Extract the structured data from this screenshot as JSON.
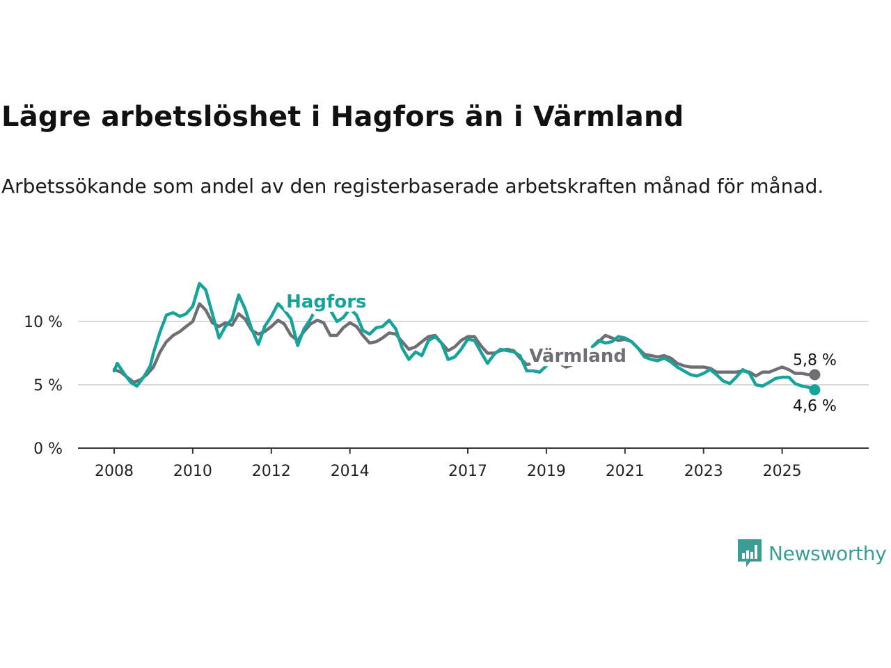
{
  "title": "Lägre arbetslöshet i Hagfors än i Värmland",
  "subtitle": "Arbetssökande som andel av den registerbaserade arbetskraften månad för månad.",
  "brand": {
    "name": "Newsworthy",
    "icon": "newsworthy-logo-icon",
    "color": "#3a9d94"
  },
  "chart_data": {
    "type": "line",
    "title": "Lägre arbetslöshet i Hagfors än i Värmland",
    "xlabel": "",
    "ylabel": "",
    "ylim": [
      0,
      13
    ],
    "xlim": [
      2008,
      2026.3
    ],
    "grid": true,
    "yticks": [
      {
        "value": 0,
        "label": "0 %"
      },
      {
        "value": 5,
        "label": "5 %"
      },
      {
        "value": 10,
        "label": "10 %"
      }
    ],
    "xticks": [
      {
        "value": 2008,
        "label": "2008"
      },
      {
        "value": 2010,
        "label": "2010"
      },
      {
        "value": 2012,
        "label": "2012"
      },
      {
        "value": 2014,
        "label": "2014"
      },
      {
        "value": 2017,
        "label": "2017"
      },
      {
        "value": 2019,
        "label": "2019"
      },
      {
        "value": 2021,
        "label": "2021"
      },
      {
        "value": 2023,
        "label": "2023"
      },
      {
        "value": 2025,
        "label": "2025"
      }
    ],
    "series": [
      {
        "name": "Värmland",
        "color": "#6f6f73",
        "end_label": "5,8 %",
        "label_position": "2019.8,6.8",
        "points": [
          [
            2008.0,
            6.2
          ],
          [
            2008.17,
            6.0
          ],
          [
            2008.33,
            5.6
          ],
          [
            2008.5,
            5.2
          ],
          [
            2008.67,
            5.4
          ],
          [
            2008.83,
            5.8
          ],
          [
            2009.0,
            6.4
          ],
          [
            2009.17,
            7.6
          ],
          [
            2009.33,
            8.4
          ],
          [
            2009.5,
            8.9
          ],
          [
            2009.67,
            9.2
          ],
          [
            2009.83,
            9.6
          ],
          [
            2010.0,
            10.0
          ],
          [
            2010.17,
            11.4
          ],
          [
            2010.33,
            10.9
          ],
          [
            2010.5,
            9.9
          ],
          [
            2010.67,
            9.6
          ],
          [
            2010.83,
            9.9
          ],
          [
            2011.0,
            9.7
          ],
          [
            2011.17,
            10.6
          ],
          [
            2011.33,
            10.2
          ],
          [
            2011.5,
            9.3
          ],
          [
            2011.67,
            9.0
          ],
          [
            2011.83,
            9.2
          ],
          [
            2012.0,
            9.6
          ],
          [
            2012.17,
            10.1
          ],
          [
            2012.33,
            9.8
          ],
          [
            2012.5,
            8.9
          ],
          [
            2012.67,
            8.5
          ],
          [
            2012.83,
            9.2
          ],
          [
            2013.0,
            9.8
          ],
          [
            2013.17,
            10.1
          ],
          [
            2013.33,
            9.9
          ],
          [
            2013.5,
            8.9
          ],
          [
            2013.67,
            8.9
          ],
          [
            2013.83,
            9.5
          ],
          [
            2014.0,
            9.9
          ],
          [
            2014.17,
            9.6
          ],
          [
            2014.33,
            8.9
          ],
          [
            2014.5,
            8.3
          ],
          [
            2014.67,
            8.4
          ],
          [
            2014.83,
            8.7
          ],
          [
            2015.0,
            9.1
          ],
          [
            2015.17,
            9.0
          ],
          [
            2015.33,
            8.4
          ],
          [
            2015.5,
            7.8
          ],
          [
            2015.67,
            8.0
          ],
          [
            2015.83,
            8.4
          ],
          [
            2016.0,
            8.8
          ],
          [
            2016.17,
            8.9
          ],
          [
            2016.33,
            8.3
          ],
          [
            2016.5,
            7.7
          ],
          [
            2016.67,
            8.0
          ],
          [
            2016.83,
            8.5
          ],
          [
            2017.0,
            8.8
          ],
          [
            2017.17,
            8.8
          ],
          [
            2017.33,
            8.1
          ],
          [
            2017.5,
            7.5
          ],
          [
            2017.67,
            7.5
          ],
          [
            2017.83,
            7.7
          ],
          [
            2018.0,
            7.8
          ],
          [
            2018.17,
            7.7
          ],
          [
            2018.33,
            7.1
          ],
          [
            2018.5,
            6.6
          ],
          [
            2018.67,
            6.7
          ],
          [
            2018.83,
            6.7
          ],
          [
            2019.0,
            6.8
          ],
          [
            2019.17,
            6.9
          ],
          [
            2019.33,
            6.7
          ],
          [
            2019.5,
            6.4
          ],
          [
            2019.67,
            6.6
          ],
          [
            2019.83,
            6.9
          ],
          [
            2020.0,
            7.4
          ],
          [
            2020.17,
            8.0
          ],
          [
            2020.33,
            8.4
          ],
          [
            2020.5,
            8.9
          ],
          [
            2020.67,
            8.7
          ],
          [
            2020.83,
            8.5
          ],
          [
            2021.0,
            8.6
          ],
          [
            2021.17,
            8.4
          ],
          [
            2021.33,
            7.9
          ],
          [
            2021.5,
            7.4
          ],
          [
            2021.67,
            7.3
          ],
          [
            2021.83,
            7.2
          ],
          [
            2022.0,
            7.3
          ],
          [
            2022.17,
            7.1
          ],
          [
            2022.33,
            6.7
          ],
          [
            2022.5,
            6.5
          ],
          [
            2022.67,
            6.4
          ],
          [
            2022.83,
            6.4
          ],
          [
            2023.0,
            6.4
          ],
          [
            2023.17,
            6.3
          ],
          [
            2023.33,
            6.0
          ],
          [
            2023.5,
            6.0
          ],
          [
            2023.67,
            6.0
          ],
          [
            2023.83,
            6.0
          ],
          [
            2024.0,
            6.1
          ],
          [
            2024.17,
            6.0
          ],
          [
            2024.33,
            5.7
          ],
          [
            2024.5,
            6.0
          ],
          [
            2024.67,
            6.0
          ],
          [
            2024.83,
            6.2
          ],
          [
            2025.0,
            6.4
          ],
          [
            2025.17,
            6.2
          ],
          [
            2025.33,
            5.9
          ],
          [
            2025.5,
            5.9
          ],
          [
            2025.67,
            5.8
          ],
          [
            2025.83,
            5.8
          ]
        ]
      },
      {
        "name": "Hagfors",
        "color": "#16a39a",
        "end_label": "4,6 %",
        "label_position": "2013.4,11.1",
        "points": [
          [
            2008.0,
            6.1
          ],
          [
            2008.08,
            6.7
          ],
          [
            2008.25,
            5.9
          ],
          [
            2008.42,
            5.2
          ],
          [
            2008.58,
            4.9
          ],
          [
            2008.75,
            5.6
          ],
          [
            2008.92,
            6.5
          ],
          [
            2009.0,
            7.5
          ],
          [
            2009.17,
            9.2
          ],
          [
            2009.33,
            10.5
          ],
          [
            2009.5,
            10.7
          ],
          [
            2009.67,
            10.4
          ],
          [
            2009.83,
            10.6
          ],
          [
            2010.0,
            11.2
          ],
          [
            2010.17,
            13.0
          ],
          [
            2010.33,
            12.5
          ],
          [
            2010.5,
            10.6
          ],
          [
            2010.67,
            8.7
          ],
          [
            2010.83,
            9.6
          ],
          [
            2011.0,
            10.2
          ],
          [
            2011.17,
            12.1
          ],
          [
            2011.33,
            11.0
          ],
          [
            2011.5,
            9.4
          ],
          [
            2011.67,
            8.2
          ],
          [
            2011.83,
            9.6
          ],
          [
            2012.0,
            10.4
          ],
          [
            2012.17,
            11.4
          ],
          [
            2012.33,
            10.9
          ],
          [
            2012.5,
            10.2
          ],
          [
            2012.67,
            8.1
          ],
          [
            2012.83,
            9.4
          ],
          [
            2013.0,
            10.2
          ],
          [
            2013.17,
            11.2
          ],
          [
            2013.33,
            10.9
          ],
          [
            2013.5,
            10.9
          ],
          [
            2013.67,
            10.0
          ],
          [
            2013.83,
            10.3
          ],
          [
            2014.0,
            11.0
          ],
          [
            2014.17,
            10.5
          ],
          [
            2014.33,
            9.3
          ],
          [
            2014.5,
            9.0
          ],
          [
            2014.67,
            9.5
          ],
          [
            2014.83,
            9.6
          ],
          [
            2015.0,
            10.1
          ],
          [
            2015.17,
            9.4
          ],
          [
            2015.33,
            7.9
          ],
          [
            2015.5,
            7.0
          ],
          [
            2015.67,
            7.6
          ],
          [
            2015.83,
            7.3
          ],
          [
            2016.0,
            8.5
          ],
          [
            2016.17,
            8.8
          ],
          [
            2016.33,
            8.3
          ],
          [
            2016.5,
            7.0
          ],
          [
            2016.67,
            7.2
          ],
          [
            2016.83,
            7.8
          ],
          [
            2017.0,
            8.6
          ],
          [
            2017.17,
            8.5
          ],
          [
            2017.33,
            7.6
          ],
          [
            2017.5,
            6.7
          ],
          [
            2017.67,
            7.4
          ],
          [
            2017.83,
            7.8
          ],
          [
            2018.0,
            7.7
          ],
          [
            2018.17,
            7.6
          ],
          [
            2018.33,
            7.3
          ],
          [
            2018.5,
            6.1
          ],
          [
            2018.67,
            6.1
          ],
          [
            2018.83,
            6.0
          ],
          [
            2019.0,
            6.5
          ],
          [
            2019.17,
            7.2
          ],
          [
            2019.33,
            6.9
          ],
          [
            2019.5,
            6.6
          ],
          [
            2019.67,
            6.9
          ],
          [
            2019.83,
            6.6
          ],
          [
            2020.0,
            7.3
          ],
          [
            2020.17,
            8.0
          ],
          [
            2020.33,
            8.5
          ],
          [
            2020.5,
            8.3
          ],
          [
            2020.67,
            8.4
          ],
          [
            2020.83,
            8.8
          ],
          [
            2021.0,
            8.7
          ],
          [
            2021.17,
            8.4
          ],
          [
            2021.33,
            7.9
          ],
          [
            2021.5,
            7.2
          ],
          [
            2021.67,
            7.0
          ],
          [
            2021.83,
            6.9
          ],
          [
            2022.0,
            7.1
          ],
          [
            2022.17,
            6.8
          ],
          [
            2022.33,
            6.4
          ],
          [
            2022.5,
            6.1
          ],
          [
            2022.67,
            5.8
          ],
          [
            2022.83,
            5.7
          ],
          [
            2023.0,
            5.9
          ],
          [
            2023.17,
            6.2
          ],
          [
            2023.33,
            5.8
          ],
          [
            2023.5,
            5.3
          ],
          [
            2023.67,
            5.1
          ],
          [
            2023.83,
            5.6
          ],
          [
            2024.0,
            6.2
          ],
          [
            2024.17,
            5.9
          ],
          [
            2024.33,
            5.0
          ],
          [
            2024.5,
            4.9
          ],
          [
            2024.67,
            5.2
          ],
          [
            2024.83,
            5.5
          ],
          [
            2025.0,
            5.6
          ],
          [
            2025.17,
            5.6
          ],
          [
            2025.33,
            5.1
          ],
          [
            2025.5,
            4.9
          ],
          [
            2025.67,
            4.8
          ],
          [
            2025.83,
            4.6
          ]
        ]
      }
    ]
  }
}
